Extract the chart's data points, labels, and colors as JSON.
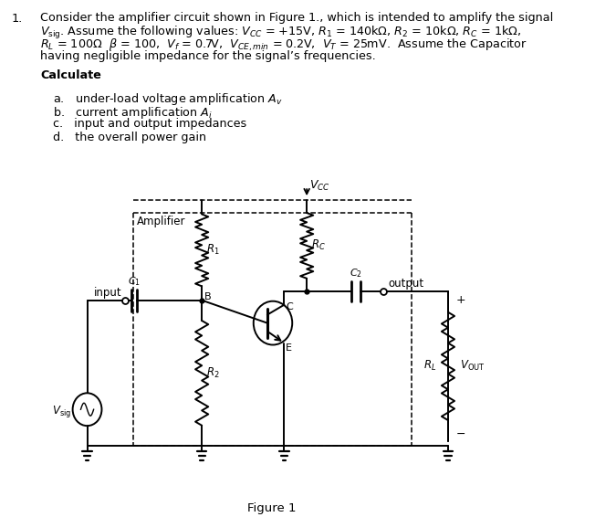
{
  "background_color": "#ffffff",
  "fig_width": 6.75,
  "fig_height": 5.66,
  "dpi": 100,
  "circuit": {
    "Vcc_label": "$V_{CC}$",
    "amplifier_label": "Amplifier",
    "R1_label": "$R_1$",
    "R2_label": "$R_2$",
    "RC_label": "$R_C$",
    "C1_label": "$C_1$",
    "C2_label": "$C_2$",
    "RL_label": "$R_L$",
    "Vsig_label": "$V_{\\rm sig}$",
    "input_label": "input",
    "output_label": "output",
    "Vout_label": "$V_{\\rm OUT}$",
    "B_label": "B",
    "C_label": "C",
    "E_label": "E",
    "plus_label": "+",
    "minus_label": "−",
    "figure_label": "Figure 1"
  },
  "text": {
    "line1": "Consider the amplifier circuit shown in Figure 1., which is intended to amplify the signal",
    "line2a": "$V_{\\rm sig}$. Assume the following values: $V_{CC}$ = +15V, $R_1$ = 140k$\\Omega$, $R_2$ = 10k$\\Omega$, $R_C$ = 1k$\\Omega$,",
    "line3": "$R_L$ = 100$\\Omega$  $\\beta$ = 100,  $V_f$ = 0.7V,  $V_{CE,min}$ = 0.2V,  $V_T$ = 25mV.  Assume the Capacitor",
    "line4": "having negligible impedance for the signal’s frequencies.",
    "calculate": "Calculate",
    "item_a": "a.   under-load voltage amplification $A_v$",
    "item_b": "b.   current amplification $A_i$",
    "item_c": "c.   input and output impedances",
    "item_d": "d.   the overall power gain"
  }
}
